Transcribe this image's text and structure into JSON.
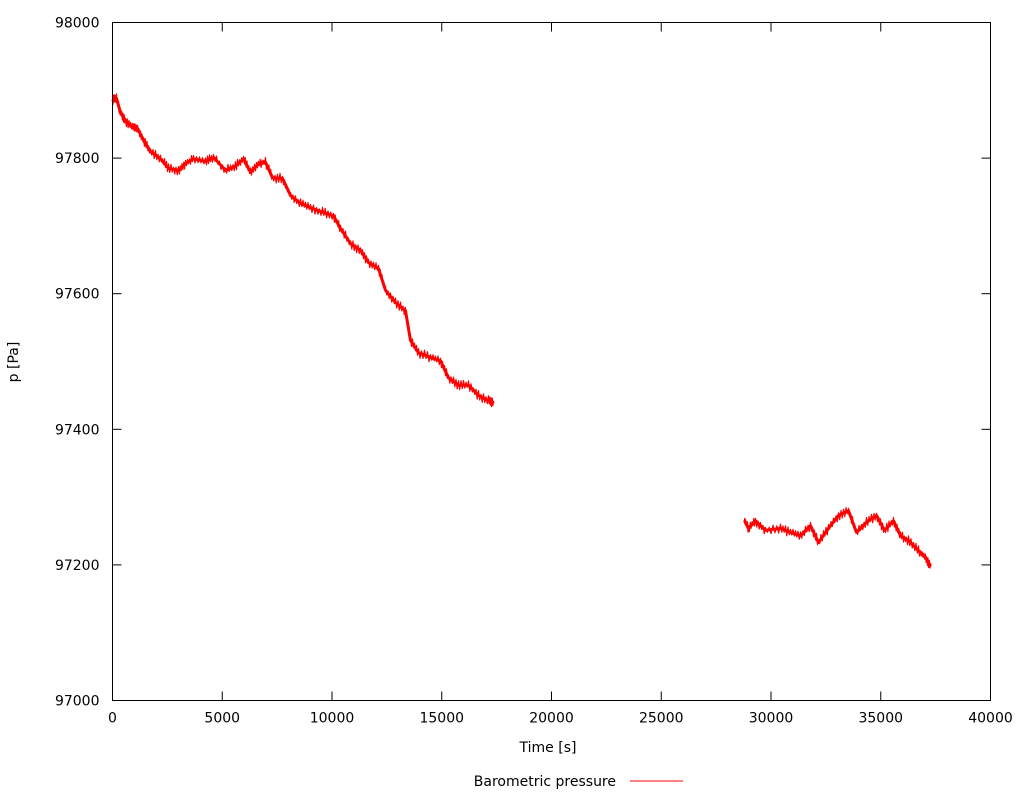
{
  "chart_data": {
    "type": "line",
    "title": "",
    "xlabel": "Time [s]",
    "ylabel": "p [Pa]",
    "xlim": [
      0,
      40000
    ],
    "ylim": [
      97000,
      98000
    ],
    "xticks": [
      "0",
      "5000",
      "10000",
      "15000",
      "20000",
      "25000",
      "30000",
      "35000",
      "40000"
    ],
    "yticks": [
      "97000",
      "97200",
      "97400",
      "97600",
      "97800",
      "98000"
    ],
    "grid": false,
    "legend": "bottom-center",
    "series": [
      {
        "name": "Barometric pressure",
        "color": "#ff0000",
        "segments": [
          [
            [
              0,
              97885
            ],
            [
              182,
              97888
            ],
            [
              364,
              97867
            ],
            [
              592,
              97855
            ],
            [
              911,
              97845
            ],
            [
              1139,
              97844
            ],
            [
              1412,
              97826
            ],
            [
              1731,
              97810
            ],
            [
              2187,
              97799
            ],
            [
              2551,
              97785
            ],
            [
              3007,
              97782
            ],
            [
              3326,
              97792
            ],
            [
              3690,
              97799
            ],
            [
              4237,
              97795
            ],
            [
              4601,
              97801
            ],
            [
              5148,
              97782
            ],
            [
              5604,
              97788
            ],
            [
              5968,
              97799
            ],
            [
              6287,
              97779
            ],
            [
              6651,
              97792
            ],
            [
              6970,
              97794
            ],
            [
              7289,
              97771
            ],
            [
              7745,
              97770
            ],
            [
              8109,
              97745
            ],
            [
              8565,
              97733
            ],
            [
              9021,
              97727
            ],
            [
              9567,
              97720
            ],
            [
              10068,
              97715
            ],
            [
              10387,
              97696
            ],
            [
              10843,
              97674
            ],
            [
              11298,
              97664
            ],
            [
              11663,
              97646
            ],
            [
              12118,
              97637
            ],
            [
              12437,
              97605
            ],
            [
              12893,
              97587
            ],
            [
              13348,
              97575
            ],
            [
              13576,
              97531
            ],
            [
              13941,
              97513
            ],
            [
              14487,
              97506
            ],
            [
              14943,
              97501
            ],
            [
              15308,
              97476
            ],
            [
              15763,
              97465
            ],
            [
              16219,
              97465
            ],
            [
              16674,
              97450
            ],
            [
              17130,
              97442
            ],
            [
              17358,
              97440
            ]
          ],
          [
            [
              28793,
              97265
            ],
            [
              28975,
              97254
            ],
            [
              29294,
              97265
            ],
            [
              29749,
              97251
            ],
            [
              30433,
              97254
            ],
            [
              30888,
              97248
            ],
            [
              31344,
              97243
            ],
            [
              31800,
              97258
            ],
            [
              32164,
              97233
            ],
            [
              32620,
              97254
            ],
            [
              33075,
              97273
            ],
            [
              33531,
              97280
            ],
            [
              33895,
              97248
            ],
            [
              34351,
              97263
            ],
            [
              34806,
              97273
            ],
            [
              35171,
              97251
            ],
            [
              35581,
              97265
            ],
            [
              35900,
              97243
            ],
            [
              36264,
              97236
            ],
            [
              36720,
              97221
            ],
            [
              37039,
              97211
            ],
            [
              37267,
              97199
            ]
          ]
        ]
      }
    ]
  }
}
